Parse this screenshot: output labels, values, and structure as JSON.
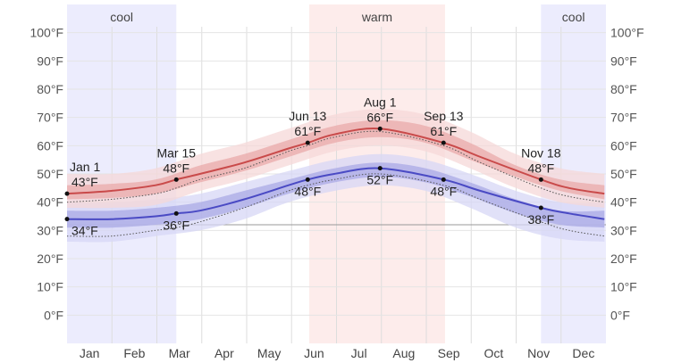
{
  "chart_data": {
    "type": "line",
    "title": "",
    "xlabel": "",
    "ylabel": "",
    "ylim": [
      -10,
      110
    ],
    "y_ticks": [
      0,
      10,
      20,
      30,
      40,
      50,
      60,
      70,
      80,
      90,
      100
    ],
    "y_unit": "°F",
    "grid": true,
    "months": [
      "Jan",
      "Feb",
      "Mar",
      "Apr",
      "May",
      "Jun",
      "Jul",
      "Aug",
      "Sep",
      "Oct",
      "Nov",
      "Dec"
    ],
    "reference_line": 32,
    "seasons": [
      {
        "label": "cool",
        "start_day": 0,
        "end_day": 74,
        "color": "#ececfd"
      },
      {
        "label": "warm",
        "start_day": 164,
        "end_day": 256,
        "color": "#fdeceb"
      },
      {
        "label": "cool",
        "start_day": 321,
        "end_day": 365,
        "color": "#ececfd"
      }
    ],
    "colors": {
      "high_line": "#c94a4a",
      "low_line": "#4a4ac4",
      "high_band_inner": "#e9a9a9",
      "high_band_outer": "#f6d8d8",
      "low_band_inner": "#a9a9e6",
      "low_band_outer": "#d7d7f5",
      "perceived_line": "#555555"
    },
    "series": [
      {
        "name": "",
        "kind": "average_high",
        "x": [
          0,
          30,
          60,
          74,
          90,
          120,
          150,
          163,
          181,
          212,
          255,
          280,
          321,
          340,
          364
        ],
        "y": [
          43,
          44,
          46,
          48,
          50,
          54,
          59,
          61,
          64,
          66,
          61,
          56,
          48,
          45,
          43
        ]
      },
      {
        "name": "",
        "kind": "average_low",
        "x": [
          0,
          30,
          60,
          74,
          90,
          120,
          150,
          163,
          181,
          212,
          255,
          280,
          321,
          340,
          364
        ],
        "y": [
          34,
          34,
          35,
          36,
          37,
          41,
          46,
          48,
          50,
          52,
          48,
          44,
          38,
          36,
          34
        ]
      },
      {
        "name": "",
        "kind": "perceived_high",
        "x": [
          0,
          30,
          60,
          74,
          90,
          120,
          150,
          163,
          181,
          212,
          255,
          280,
          321,
          340,
          364
        ],
        "y": [
          40,
          41,
          43,
          45,
          48,
          52,
          58,
          60,
          63,
          65,
          60,
          54,
          45,
          42,
          40
        ]
      },
      {
        "name": "",
        "kind": "perceived_low",
        "x": [
          0,
          30,
          60,
          74,
          90,
          120,
          150,
          163,
          181,
          212,
          255,
          280,
          321,
          340,
          364
        ],
        "y": [
          28,
          28,
          30,
          31,
          33,
          38,
          44,
          46,
          48,
          50,
          46,
          41,
          33,
          30,
          28
        ]
      }
    ],
    "bands": {
      "x": [
        0,
        30,
        60,
        90,
        120,
        150,
        181,
        212,
        243,
        273,
        304,
        334,
        364
      ],
      "high_p25": [
        41,
        41.5,
        43,
        47,
        51,
        56,
        61,
        63,
        61,
        55,
        49,
        44,
        41
      ],
      "high_p75": [
        46,
        46.5,
        48,
        53,
        57,
        62,
        67,
        69,
        67,
        61,
        53,
        48,
        46
      ],
      "high_p10": [
        38,
        38,
        39,
        44,
        48,
        53,
        58,
        60,
        58,
        52,
        45,
        40,
        38
      ],
      "high_p90": [
        50,
        50,
        52,
        57,
        61,
        66,
        71,
        73,
        71,
        65,
        57,
        52,
        50
      ],
      "low_p25": [
        31,
        31,
        32,
        34,
        38,
        43,
        47,
        49,
        47,
        42,
        36,
        32,
        31
      ],
      "low_p75": [
        37,
        37,
        38,
        40,
        44,
        48,
        52,
        54,
        52,
        47,
        41,
        37,
        37
      ],
      "low_p10": [
        26,
        26,
        28,
        30,
        34,
        40,
        44,
        46,
        44,
        38,
        31,
        27,
        26
      ],
      "low_p90": [
        40,
        40,
        41,
        43,
        47,
        51,
        55,
        57,
        55,
        50,
        44,
        40,
        40
      ]
    },
    "annotations": [
      {
        "date": "Jan 1",
        "day": 0,
        "high": "43°F",
        "high_value": 43,
        "low": "34°F",
        "low_value": 34
      },
      {
        "date": "Mar 15",
        "day": 74,
        "high": "48°F",
        "high_value": 48,
        "low": "36°F",
        "low_value": 36
      },
      {
        "date": "Jun 13",
        "day": 163,
        "high": "61°F",
        "high_value": 61,
        "low": "48°F",
        "low_value": 48
      },
      {
        "date": "Aug 1",
        "day": 212,
        "high": "66°F",
        "high_value": 66,
        "low": "52°F",
        "low_value": 52
      },
      {
        "date": "Sep 13",
        "day": 255,
        "high": "61°F",
        "high_value": 61,
        "low": "48°F",
        "low_value": 48
      },
      {
        "date": "Nov 18",
        "day": 321,
        "high": "48°F",
        "high_value": 48,
        "low": "38°F",
        "low_value": 38
      }
    ]
  }
}
